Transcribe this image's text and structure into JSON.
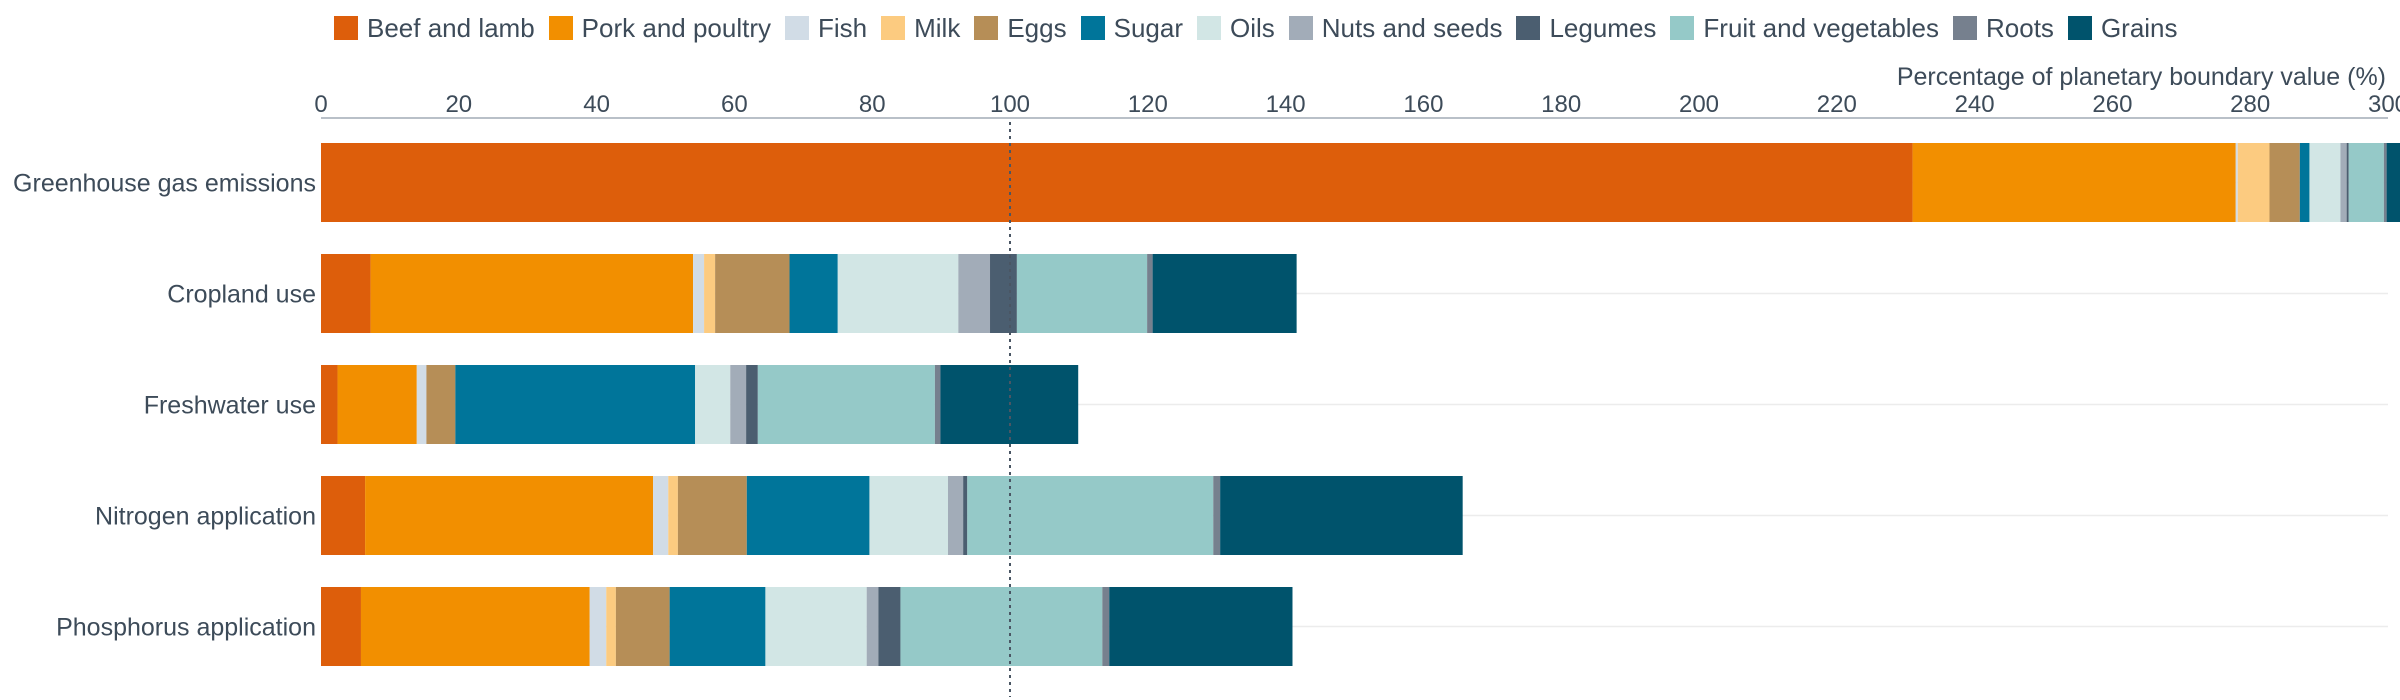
{
  "chart_data": {
    "type": "bar",
    "orientation": "horizontal",
    "stacked": true,
    "xlabel": "Percentage of planetary boundary value (%)",
    "xlim": [
      0,
      300
    ],
    "xticks": [
      0,
      20,
      40,
      60,
      80,
      100,
      120,
      140,
      160,
      180,
      200,
      220,
      240,
      260,
      280,
      300
    ],
    "reference_line": {
      "value": 100,
      "style": "dotted"
    },
    "legend_position": "top",
    "grid": true,
    "categories": [
      "Greenhouse gas emissions",
      "Cropland use",
      "Freshwater use",
      "Nitrogen application",
      "Phosphorus application"
    ],
    "series": [
      {
        "name": "Beef and lamb",
        "color": "#dd5e0b",
        "values": [
          231.0,
          7.2,
          2.4,
          6.4,
          5.8
        ]
      },
      {
        "name": "Pork and poultry",
        "color": "#f28f00",
        "values": [
          46.9,
          46.8,
          11.5,
          41.8,
          33.2
        ]
      },
      {
        "name": "Fish",
        "color": "#d1dce6",
        "values": [
          0.3,
          1.6,
          1.4,
          2.2,
          2.4
        ]
      },
      {
        "name": "Milk",
        "color": "#fccb80",
        "values": [
          4.6,
          1.6,
          0,
          1.4,
          1.4
        ]
      },
      {
        "name": "Eggs",
        "color": "#b68e57",
        "values": [
          4.4,
          10.8,
          4.2,
          10.0,
          7.8
        ]
      },
      {
        "name": "Sugar",
        "color": "#00759a",
        "values": [
          1.4,
          7.0,
          34.8,
          17.8,
          13.9
        ]
      },
      {
        "name": "Oils",
        "color": "#d2e6e5",
        "values": [
          4.5,
          17.5,
          5.1,
          11.4,
          14.7
        ]
      },
      {
        "name": "Nuts and seeds",
        "color": "#a2acb8",
        "values": [
          0.9,
          4.6,
          2.3,
          2.2,
          1.7
        ]
      },
      {
        "name": "Legumes",
        "color": "#4b5e70",
        "values": [
          0.3,
          3.9,
          1.7,
          0.6,
          3.2
        ]
      },
      {
        "name": "Fruit and vegetables",
        "color": "#95c9c8",
        "values": [
          5.1,
          18.9,
          25.7,
          35.7,
          29.3
        ]
      },
      {
        "name": "Roots",
        "color": "#76808e",
        "values": [
          0.4,
          0.8,
          0.8,
          1.0,
          1.0
        ]
      },
      {
        "name": "Grains",
        "color": "#00536c",
        "values": [
          3.1,
          20.9,
          20.0,
          35.2,
          26.6
        ]
      }
    ]
  }
}
